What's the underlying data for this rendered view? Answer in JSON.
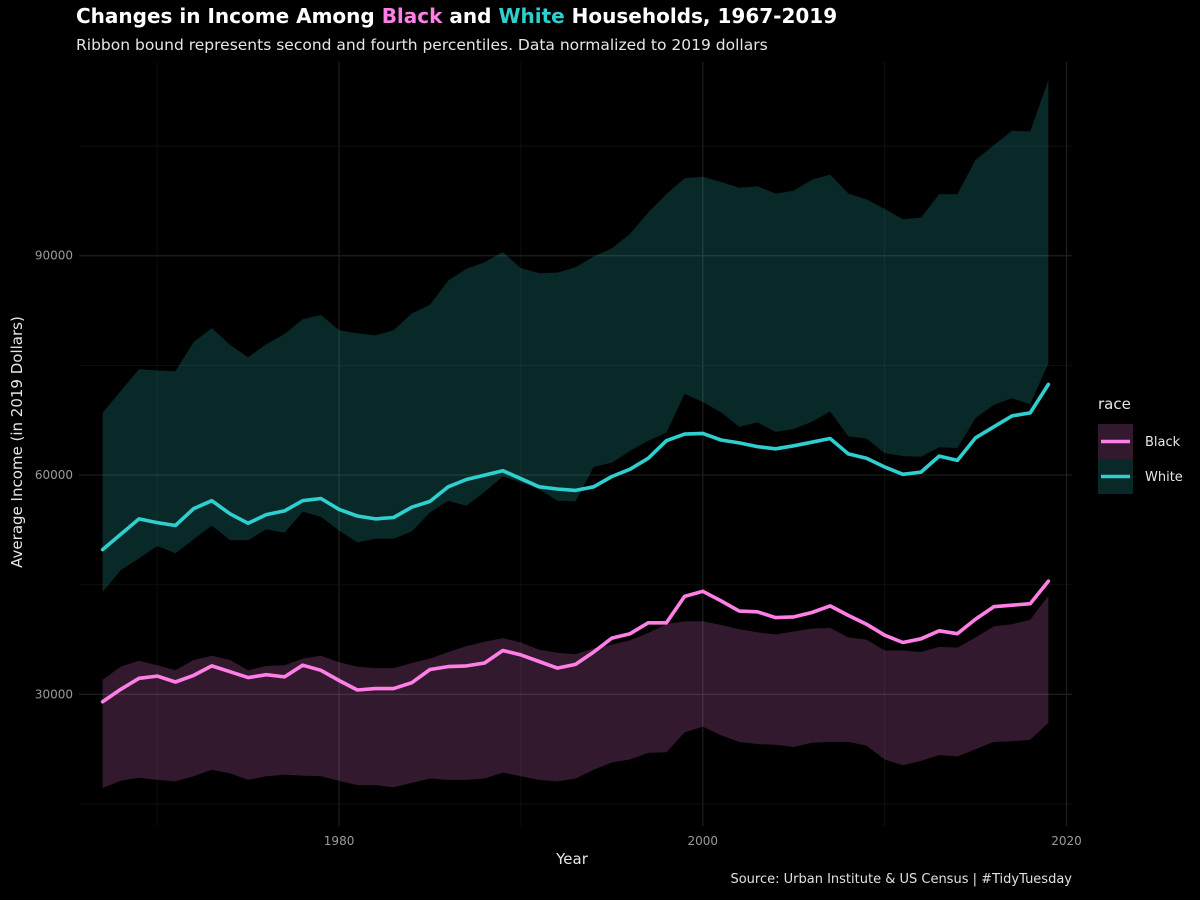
{
  "chart_data": {
    "type": "line",
    "title_parts": [
      "Changes in Income Among ",
      "Black",
      " and ",
      "White",
      " Households, 1967-2019"
    ],
    "subtitle": "Ribbon bound represents second and fourth percentiles. Data normalized to 2019 dollars",
    "caption": "Source: Urban Institute & US Census | #TidyTuesday",
    "xlabel": "Year",
    "ylabel": "Average Income (in 2019 Dollars)",
    "xlim": [
      1965.7,
      2020.3
    ],
    "ylim": [
      12000,
      116500
    ],
    "x_ticks": [
      1980,
      2000,
      2020
    ],
    "y_ticks": [
      30000,
      60000,
      90000
    ],
    "grid": true,
    "legend": {
      "title": "race",
      "position": "right"
    },
    "series": [
      {
        "name": "Black",
        "color": "#ff7fe6",
        "ribbon_color": "#4a2440",
        "x": [
          1967,
          1968,
          1969,
          1970,
          1971,
          1972,
          1973,
          1974,
          1975,
          1976,
          1977,
          1978,
          1979,
          1980,
          1981,
          1982,
          1983,
          1984,
          1985,
          1986,
          1987,
          1988,
          1989,
          1990,
          1991,
          1992,
          1993,
          1994,
          1995,
          1996,
          1997,
          1998,
          1999,
          2000,
          2001,
          2002,
          2003,
          2004,
          2005,
          2006,
          2007,
          2008,
          2009,
          2010,
          2011,
          2012,
          2013,
          2014,
          2015,
          2016,
          2017,
          2018,
          2019
        ],
        "values": [
          29000,
          30700,
          32200,
          32500,
          31700,
          32600,
          33900,
          33100,
          32300,
          32700,
          32400,
          34000,
          33300,
          31900,
          30600,
          30800,
          30800,
          31600,
          33400,
          33800,
          33900,
          34300,
          36000,
          35400,
          34500,
          33600,
          34100,
          35800,
          37700,
          38300,
          39800,
          39800,
          43400,
          44100,
          42800,
          41400,
          41300,
          40500,
          40600,
          41200,
          42100,
          40800,
          39600,
          38100,
          37100,
          37600,
          38700,
          38300,
          40300,
          42000,
          42200,
          42400,
          45500
        ],
        "lower": [
          17200,
          18200,
          18600,
          18300,
          18100,
          18800,
          19700,
          19200,
          18300,
          18800,
          19000,
          18900,
          18800,
          18200,
          17600,
          17600,
          17300,
          17900,
          18500,
          18300,
          18300,
          18500,
          19300,
          18800,
          18300,
          18100,
          18500,
          19700,
          20700,
          21100,
          22000,
          22100,
          24800,
          25600,
          24400,
          23500,
          23200,
          23100,
          22800,
          23400,
          23500,
          23500,
          23000,
          21100,
          20300,
          20900,
          21700,
          21500,
          22500,
          23500,
          23600,
          23800,
          26100
        ],
        "upper": [
          32000,
          33800,
          34600,
          34000,
          33300,
          34700,
          35300,
          34700,
          33300,
          33900,
          34000,
          34900,
          35300,
          34400,
          33800,
          33600,
          33600,
          34300,
          34900,
          35800,
          36600,
          37200,
          37700,
          37100,
          36100,
          35700,
          35500,
          36300,
          36800,
          37400,
          38400,
          39600,
          40000,
          40000,
          39500,
          38900,
          38500,
          38200,
          38600,
          39000,
          39100,
          37800,
          37500,
          36000,
          36000,
          35800,
          36500,
          36400,
          37800,
          39300,
          39600,
          40200,
          43500
        ]
      },
      {
        "name": "White",
        "color": "#2fcfcf",
        "ribbon_color": "#0d3232",
        "x": [
          1967,
          1968,
          1969,
          1970,
          1971,
          1972,
          1973,
          1974,
          1975,
          1976,
          1977,
          1978,
          1979,
          1980,
          1981,
          1982,
          1983,
          1984,
          1985,
          1986,
          1987,
          1988,
          1989,
          1990,
          1991,
          1992,
          1993,
          1994,
          1995,
          1996,
          1997,
          1998,
          1999,
          2000,
          2001,
          2002,
          2003,
          2004,
          2005,
          2006,
          2007,
          2008,
          2009,
          2010,
          2011,
          2012,
          2013,
          2014,
          2015,
          2016,
          2017,
          2018,
          2019
        ],
        "values": [
          49800,
          51900,
          54000,
          53500,
          53100,
          55400,
          56500,
          54700,
          53400,
          54600,
          55100,
          56500,
          56800,
          55300,
          54400,
          54000,
          54200,
          55600,
          56400,
          58400,
          59400,
          60000,
          60600,
          59500,
          58400,
          58100,
          57900,
          58400,
          59800,
          60800,
          62300,
          64700,
          65600,
          65700,
          64800,
          64400,
          63900,
          63600,
          64000,
          64500,
          65000,
          62900,
          62300,
          61100,
          60100,
          60400,
          62600,
          62000,
          65100,
          66600,
          68100,
          68500,
          72400
        ],
        "lower": [
          44000,
          47000,
          48600,
          50300,
          49300,
          51200,
          53100,
          51100,
          51100,
          52600,
          52100,
          55000,
          54300,
          52400,
          50800,
          51300,
          51300,
          52300,
          54900,
          56500,
          55800,
          57700,
          59800,
          59000,
          58100,
          56500,
          56400,
          61100,
          61700,
          63300,
          64700,
          65800,
          71100,
          70000,
          68600,
          66600,
          67200,
          65900,
          66300,
          67300,
          68700,
          65300,
          65000,
          63000,
          62600,
          62500,
          63800,
          63700,
          67800,
          69600,
          70500,
          69700,
          75300
        ],
        "upper": [
          68500,
          71500,
          74500,
          74300,
          74200,
          78200,
          80100,
          77800,
          76100,
          77900,
          79300,
          81300,
          81900,
          79800,
          79400,
          79100,
          79800,
          82100,
          83300,
          86600,
          88200,
          89100,
          90500,
          88300,
          87600,
          87700,
          88400,
          89900,
          91000,
          93000,
          95900,
          98400,
          100600,
          100800,
          100100,
          99300,
          99500,
          98500,
          98900,
          100400,
          101100,
          98500,
          97700,
          96400,
          95000,
          95200,
          98400,
          98400,
          103100,
          105100,
          107100,
          107000,
          114000
        ]
      }
    ]
  }
}
